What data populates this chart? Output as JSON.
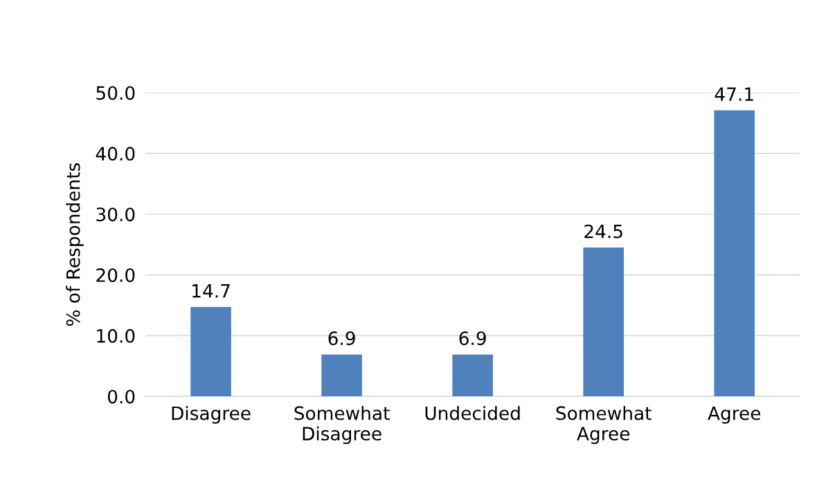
{
  "chart_data": {
    "type": "bar",
    "ylabel": "% of Respondents",
    "categories": [
      "Disagree",
      "Somewhat\nDisagree",
      "Undecided",
      "Somewhat\nAgree",
      "Agree"
    ],
    "values": [
      14.7,
      6.9,
      6.9,
      24.5,
      47.1
    ],
    "color": "#4f81bd",
    "ylim": [
      0,
      50
    ],
    "yticks": [
      {
        "value": 0,
        "label": "0.0"
      },
      {
        "value": 10,
        "label": "10.0"
      },
      {
        "value": 20,
        "label": "20.0"
      },
      {
        "value": 30,
        "label": "30.0"
      },
      {
        "value": 40,
        "label": "40.0"
      },
      {
        "value": 50,
        "label": "50.0"
      }
    ],
    "grid": "y",
    "data_labels": true
  }
}
